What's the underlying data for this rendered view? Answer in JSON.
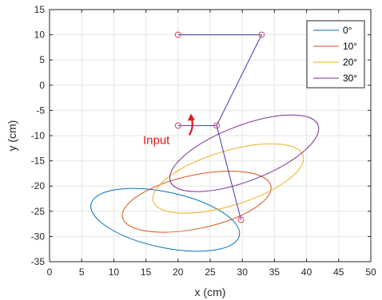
{
  "chart_data": {
    "type": "line",
    "xlabel": "x (cm)",
    "ylabel": "y (cm)",
    "xlim": [
      0,
      50
    ],
    "ylim": [
      -35,
      15
    ],
    "xticks": [
      0,
      5,
      10,
      15,
      20,
      25,
      30,
      35,
      40,
      45,
      50
    ],
    "yticks": [
      -35,
      -30,
      -25,
      -20,
      -15,
      -10,
      -5,
      0,
      5,
      10,
      15
    ],
    "grid": true,
    "legend_position": "top-right",
    "series": [
      {
        "name": "0°",
        "color": "#0072BD",
        "ellipse": {
          "cx": 18,
          "cy": -26.7,
          "rx": 11.8,
          "ry": 5.5,
          "rotation_deg": -12
        }
      },
      {
        "name": "10°",
        "color": "#D95319",
        "ellipse": {
          "cx": 22.9,
          "cy": -23.1,
          "rx": 11.8,
          "ry": 5.3,
          "rotation_deg": 12
        }
      },
      {
        "name": "20°",
        "color": "#EDB120",
        "ellipse": {
          "cx": 27.8,
          "cy": -18.5,
          "rx": 12.2,
          "ry": 5.4,
          "rotation_deg": 17
        }
      },
      {
        "name": "30°",
        "color": "#7E2F8E",
        "ellipse": {
          "cx": 30.3,
          "cy": -13.5,
          "rx": 12.3,
          "ry": 5.5,
          "rotation_deg": 21
        }
      }
    ],
    "linkage": {
      "color": "#3A3AB8",
      "joint_color": "#D9465A",
      "segments": [
        [
          [
            20,
            10
          ],
          [
            33,
            10
          ]
        ],
        [
          [
            33,
            10
          ],
          [
            26,
            -8
          ]
        ],
        [
          [
            20,
            -8
          ],
          [
            26,
            -8
          ]
        ],
        [
          [
            26,
            -8
          ],
          [
            29.8,
            -26.7
          ]
        ]
      ],
      "joints": [
        [
          20,
          10
        ],
        [
          33,
          10
        ],
        [
          20,
          -8
        ],
        [
          26,
          -8
        ],
        [
          29.8,
          -26.7
        ]
      ]
    },
    "annotation": {
      "text": "Input",
      "color": "#E31A1C",
      "at": [
        18.7,
        -10.9
      ],
      "arrow_center": [
        20,
        -8
      ]
    }
  }
}
